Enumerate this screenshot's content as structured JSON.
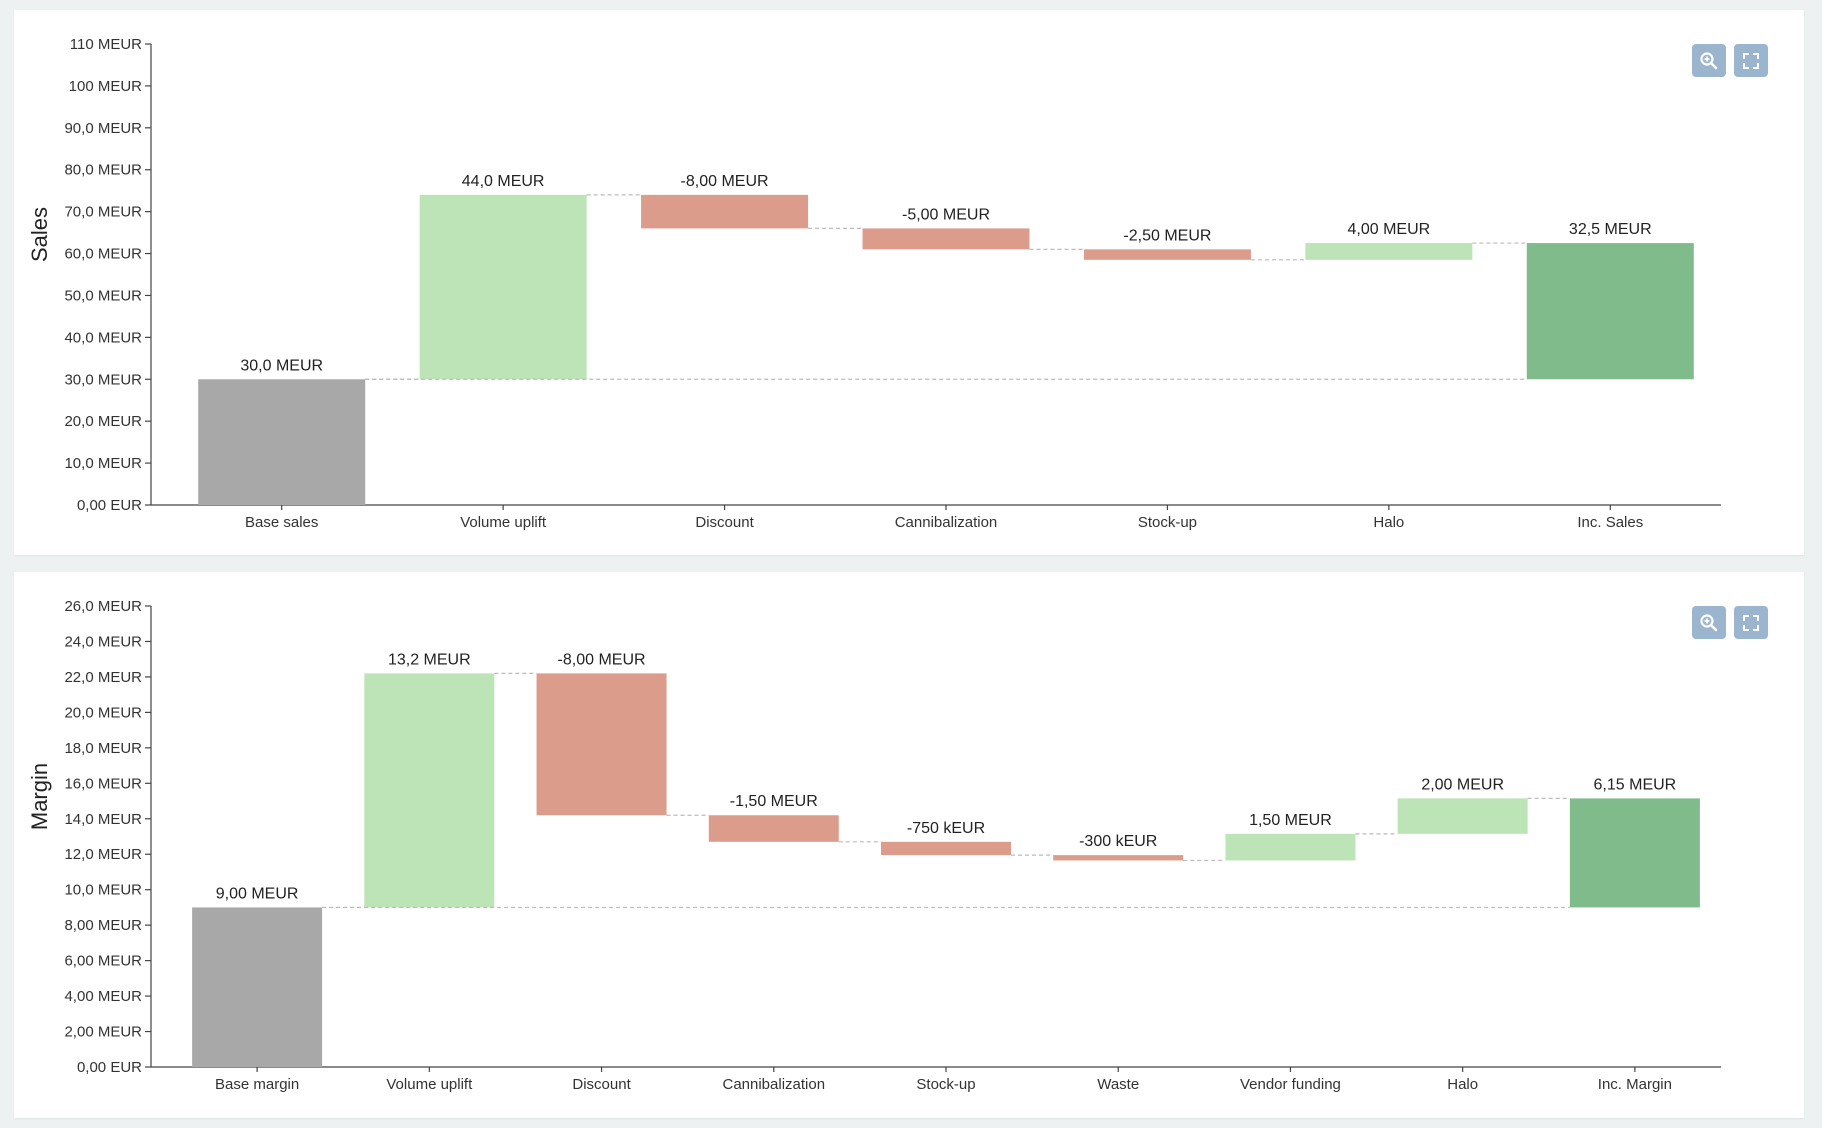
{
  "toolbar": {
    "zoom_icon": "magnifier-plus-icon",
    "fullscreen_icon": "fullscreen-icon",
    "button_color": "#9bb5cf"
  },
  "colors": {
    "base": "#a8a8a8",
    "increase": "#bde4b7",
    "decrease": "#dc9c8c",
    "total": "#80bb8c",
    "connector": "#bbbbbb",
    "axis": "#444444"
  },
  "chart_data": [
    {
      "type": "waterfall",
      "ylabel": "Sales",
      "xlabel": "",
      "ylim": [
        0,
        110
      ],
      "unit": "MEUR",
      "y_ticks": [
        "0,00 EUR",
        "10,0 MEUR",
        "20,0 MEUR",
        "30,0 MEUR",
        "40,0 MEUR",
        "50,0 MEUR",
        "60,0 MEUR",
        "70,0 MEUR",
        "80,0 MEUR",
        "90,0 MEUR",
        "100 MEUR",
        "110 MEUR"
      ],
      "y_tick_values": [
        0,
        10,
        20,
        30,
        40,
        50,
        60,
        70,
        80,
        90,
        100,
        110
      ],
      "grid": false,
      "categories": [
        "Base sales",
        "Volume uplift",
        "Discount",
        "Cannibalization",
        "Stock-up",
        "Halo",
        "Inc. Sales"
      ],
      "values": [
        30.0,
        44.0,
        -8.0,
        -5.0,
        -2.5,
        4.0,
        32.5
      ],
      "kinds": [
        "base",
        "delta",
        "delta",
        "delta",
        "delta",
        "delta",
        "total"
      ],
      "value_labels": [
        "30,0 MEUR",
        "44,0 MEUR",
        "-8,00 MEUR",
        "-5,00 MEUR",
        "-2,50 MEUR",
        "4,00 MEUR",
        "32,5 MEUR"
      ]
    },
    {
      "type": "waterfall",
      "ylabel": "Margin",
      "xlabel": "",
      "ylim": [
        0,
        26
      ],
      "unit": "MEUR",
      "y_ticks": [
        "0,00 EUR",
        "2,00 MEUR",
        "4,00 MEUR",
        "6,00 MEUR",
        "8,00 MEUR",
        "10,0 MEUR",
        "12,0 MEUR",
        "14,0 MEUR",
        "16,0 MEUR",
        "18,0 MEUR",
        "20,0 MEUR",
        "22,0 MEUR",
        "24,0 MEUR",
        "26,0 MEUR"
      ],
      "y_tick_values": [
        0,
        2,
        4,
        6,
        8,
        10,
        12,
        14,
        16,
        18,
        20,
        22,
        24,
        26
      ],
      "grid": false,
      "categories": [
        "Base margin",
        "Volume uplift",
        "Discount",
        "Cannibalization",
        "Stock-up",
        "Waste",
        "Vendor funding",
        "Halo",
        "Inc. Margin"
      ],
      "values": [
        9.0,
        13.2,
        -8.0,
        -1.5,
        -0.75,
        -0.3,
        1.5,
        2.0,
        6.15
      ],
      "kinds": [
        "base",
        "delta",
        "delta",
        "delta",
        "delta",
        "delta",
        "delta",
        "delta",
        "total"
      ],
      "value_labels": [
        "9,00 MEUR",
        "13,2 MEUR",
        "-8,00 MEUR",
        "-1,50 MEUR",
        "-750 kEUR",
        "-300 kEUR",
        "1,50 MEUR",
        "2,00 MEUR",
        "6,15 MEUR"
      ]
    }
  ]
}
